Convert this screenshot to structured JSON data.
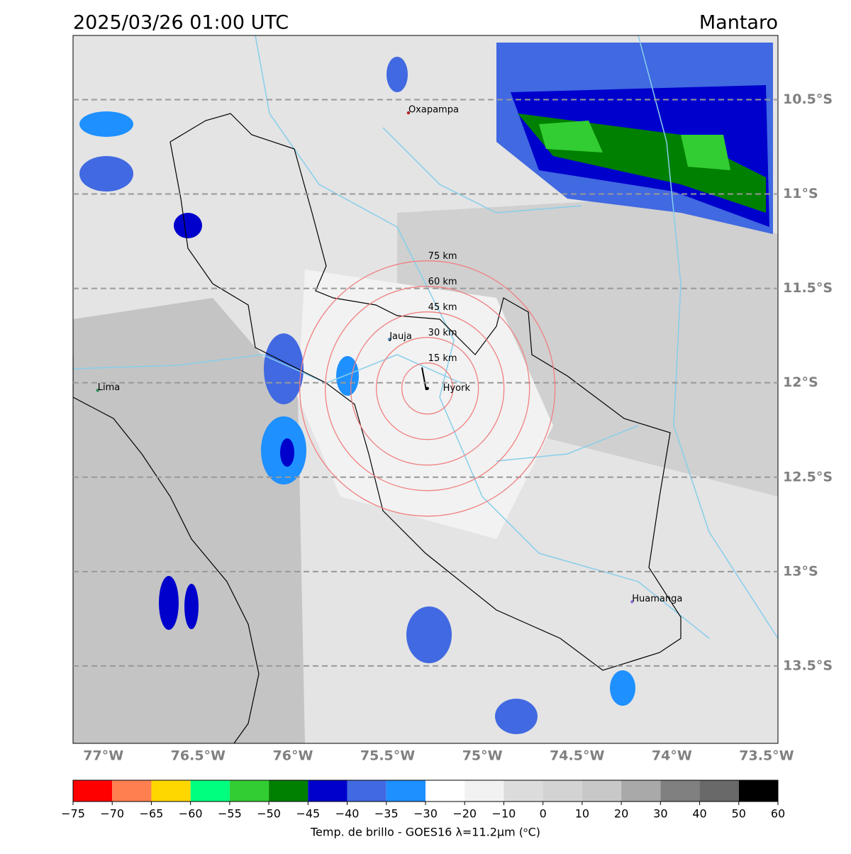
{
  "title_left": "2025/03/26 01:00 UTC",
  "title_right": "Mantaro",
  "map": {
    "xlim": [
      -77.16,
      -73.44
    ],
    "ylim": [
      -13.91,
      -10.16
    ],
    "lat_lines": [
      {
        "value": -10.5,
        "label": "10.5°S"
      },
      {
        "value": -11,
        "label": "11°S"
      },
      {
        "value": -11.5,
        "label": "11.5°S"
      },
      {
        "value": -12,
        "label": "12°S"
      },
      {
        "value": -12.5,
        "label": "12.5°S"
      },
      {
        "value": -13,
        "label": "13°S"
      },
      {
        "value": -13.5,
        "label": "13.5°S"
      }
    ],
    "lon_ticks": [
      {
        "value": -77,
        "label": "77°W"
      },
      {
        "value": -76.5,
        "label": "76.5°W"
      },
      {
        "value": -76,
        "label": "76°W"
      },
      {
        "value": -75.5,
        "label": "75.5°W"
      },
      {
        "value": -75,
        "label": "75°W"
      },
      {
        "value": -74.5,
        "label": "74.5°W"
      },
      {
        "value": -74,
        "label": "74°W"
      },
      {
        "value": -73.5,
        "label": "73.5°W"
      }
    ],
    "cities": [
      {
        "name": "Oxapampa",
        "lon": -75.39,
        "lat": -10.57,
        "color": "#b22222"
      },
      {
        "name": "Jauja",
        "lon": -75.49,
        "lat": -11.77,
        "color": "#4682b4"
      },
      {
        "name": "Lima",
        "lon": -77.03,
        "lat": -12.04,
        "color": "#2e8b57"
      },
      {
        "name": "Hyork",
        "lon": -75.29,
        "lat": -12.03,
        "color": "#000000"
      },
      {
        "name": "Huamanga",
        "lon": -74.21,
        "lat": -13.16,
        "color": "#9370db"
      }
    ],
    "rings": [
      {
        "value": 15,
        "label": "15 km"
      },
      {
        "value": 30,
        "label": "30 km"
      },
      {
        "value": 45,
        "label": "45 km"
      },
      {
        "value": 60,
        "label": "60 km"
      },
      {
        "value": 75,
        "label": "75 km"
      }
    ]
  },
  "colorbar": {
    "label": "Temp. de brillo - GOES16 λ=11.2μm (ᵒC)",
    "ticks": [
      {
        "value": -75,
        "label": "−75"
      },
      {
        "value": -70,
        "label": "−70"
      },
      {
        "value": -65,
        "label": "−65"
      },
      {
        "value": -60,
        "label": "−60"
      },
      {
        "value": -55,
        "label": "−55"
      },
      {
        "value": -50,
        "label": "−50"
      },
      {
        "value": -45,
        "label": "−45"
      },
      {
        "value": -40,
        "label": "−40"
      },
      {
        "value": -35,
        "label": "−35"
      },
      {
        "value": -30,
        "label": "−30"
      },
      {
        "value": -20,
        "label": "−20"
      },
      {
        "value": -10,
        "label": "−10"
      },
      0,
      10,
      20,
      30,
      40,
      50,
      60
    ],
    "colors": [
      "#ff0000",
      "#ff7f50",
      "#ffd700",
      "#00ff7f",
      "#32cd32",
      "#008000",
      "#0000cd",
      "#4169e1",
      "#1e90ff",
      "#ffffff",
      "#f2f2f2",
      "#dcdcdc",
      "#d3d3d3",
      "#c8c8c8",
      "#a9a9a9",
      "#808080",
      "#696969",
      "#000000"
    ]
  }
}
